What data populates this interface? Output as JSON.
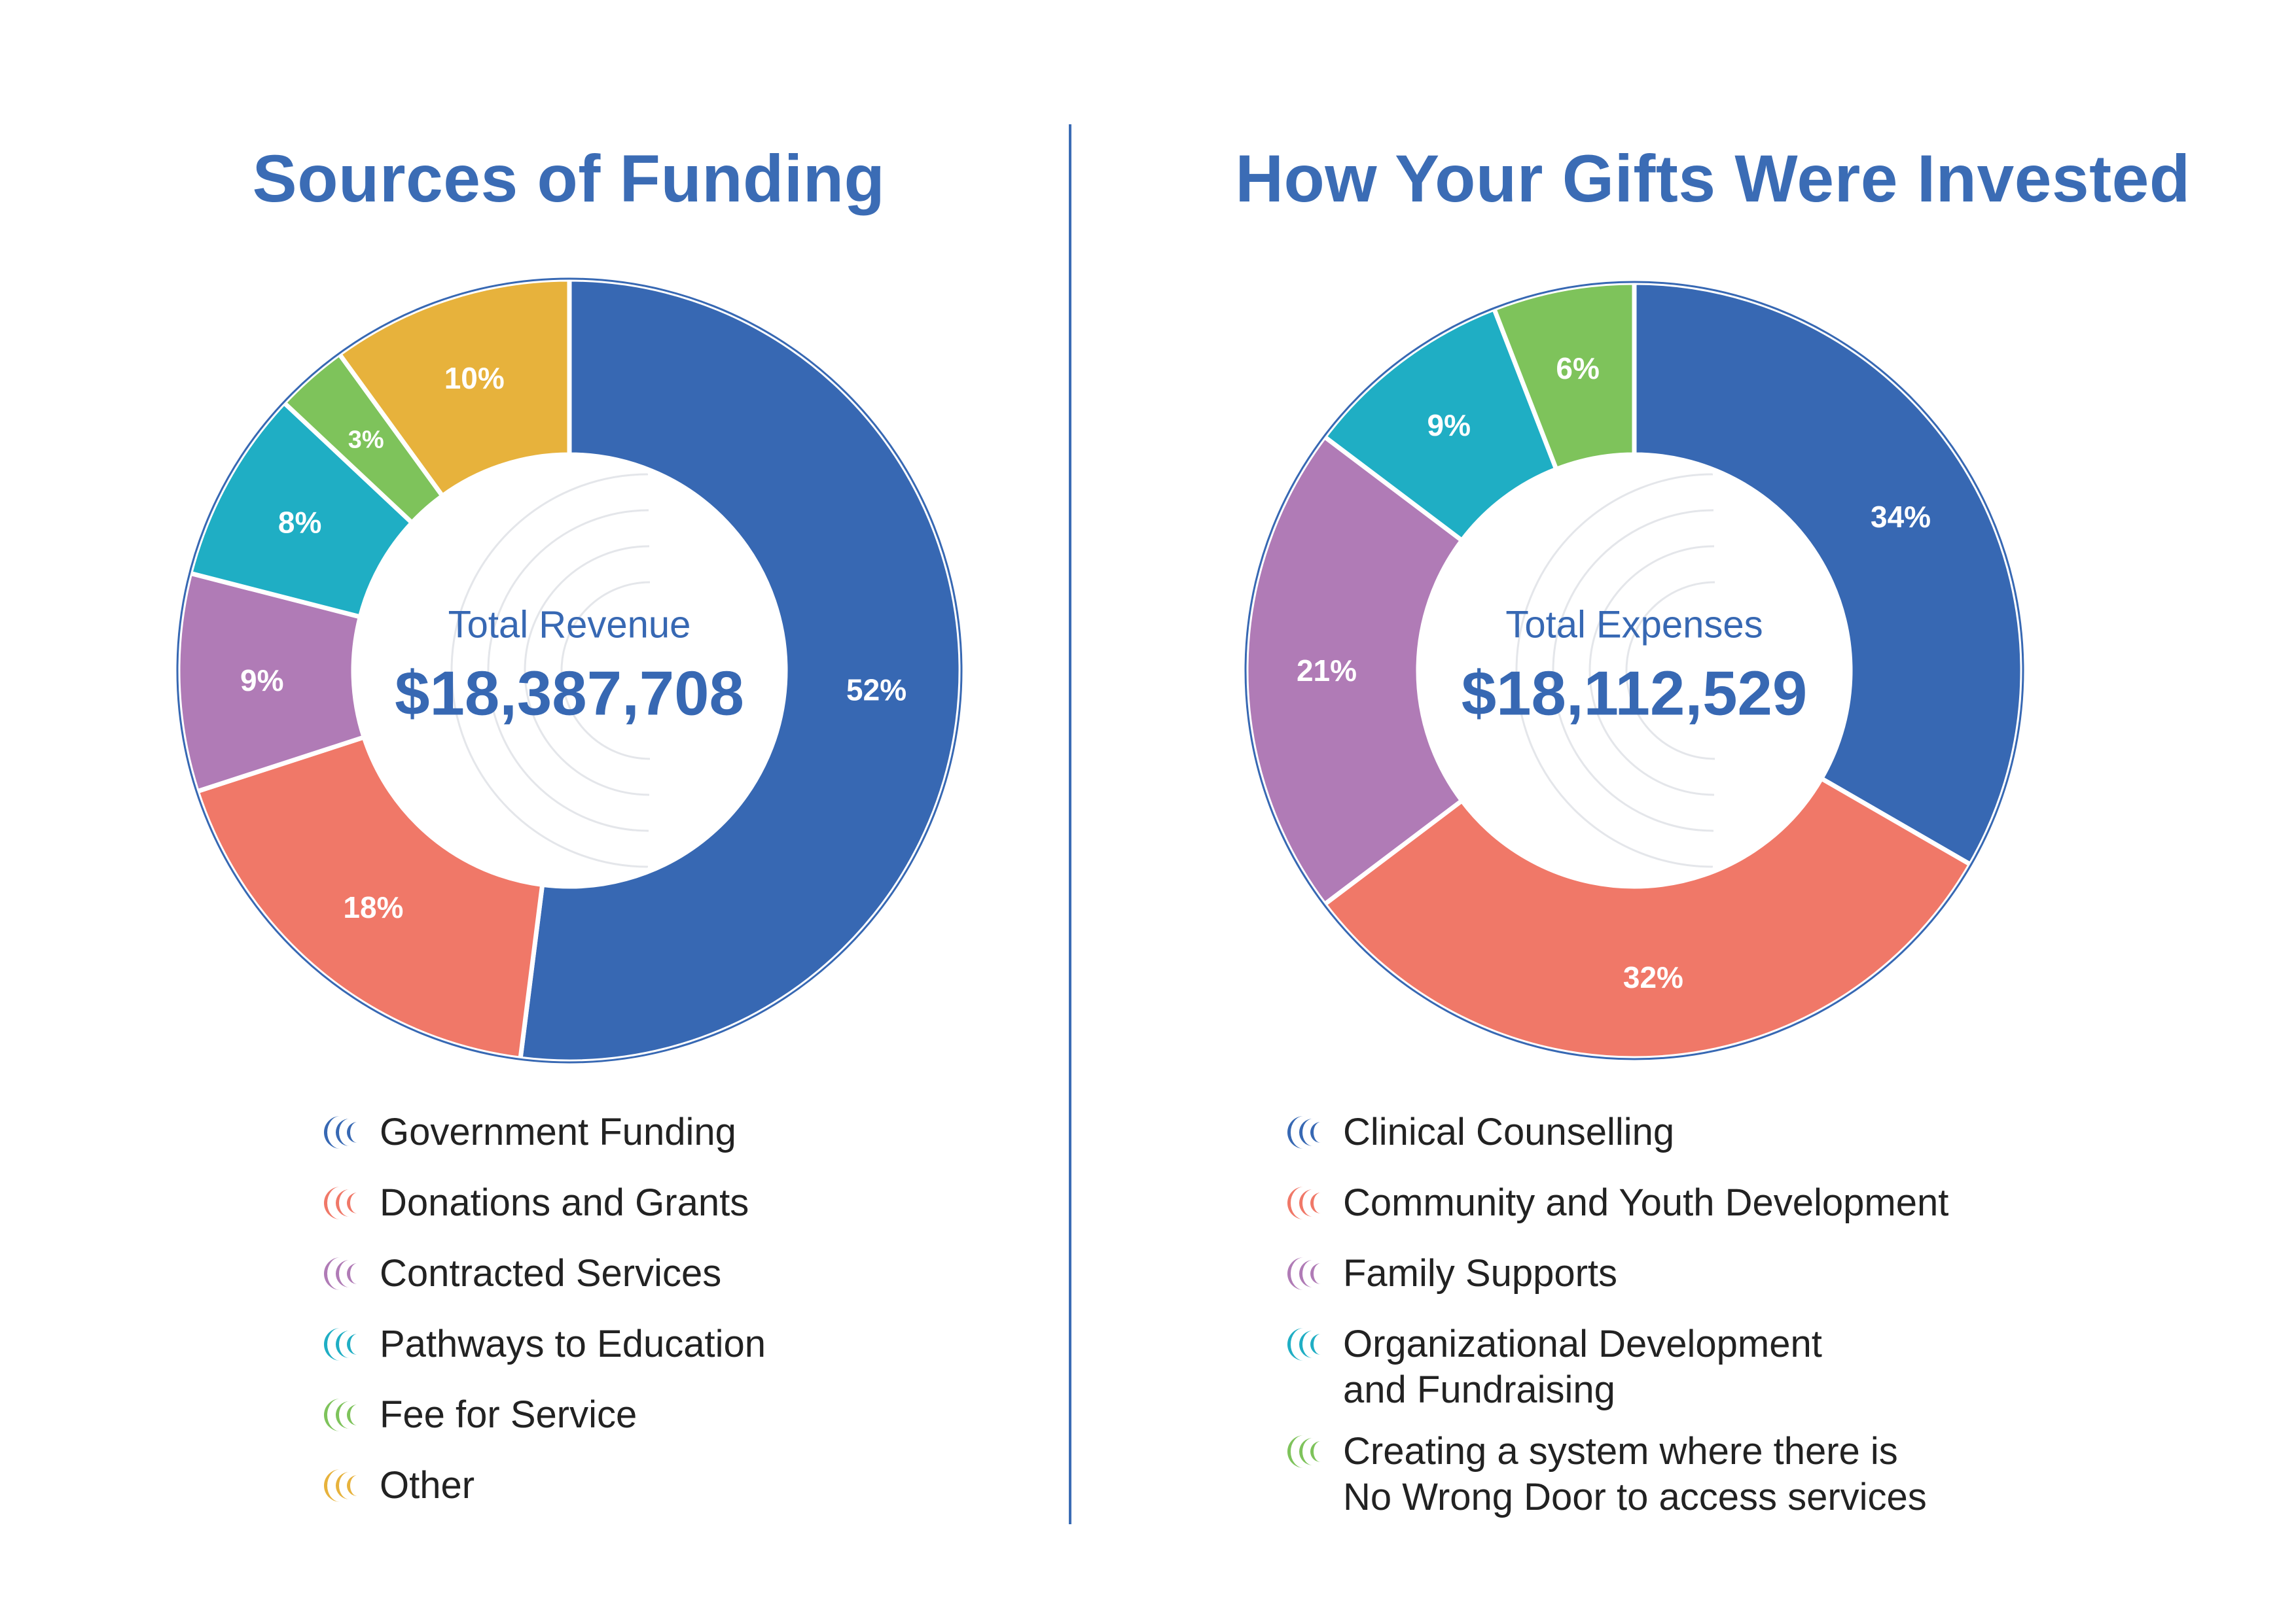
{
  "chart_data": [
    {
      "type": "pie",
      "title": "Sources of Funding",
      "center_label": "Total Revenue",
      "center_value": "$18,387,708",
      "categories": [
        "Government Funding",
        "Donations and Grants",
        "Contracted Services",
        "Pathways to Education",
        "Fee for Service",
        "Other"
      ],
      "values": [
        52,
        18,
        9,
        8,
        3,
        10
      ],
      "labels": [
        "52%",
        "18%",
        "9%",
        "8%",
        "3%",
        "10%"
      ],
      "colors": [
        "#3768b3",
        "#f07868",
        "#b07bb6",
        "#1faec4",
        "#7ec35b",
        "#e7b23c"
      ],
      "legend_placement": "bottom"
    },
    {
      "type": "pie",
      "title": "How Your Gifts Were Invested",
      "center_label": "Total Expenses",
      "center_value": "$18,112,529",
      "categories": [
        "Clinical Counselling",
        "Community and Youth Development",
        "Family Supports",
        "Organizational Development and Fundraising",
        "Creating a system where there is No Wrong Door to access services"
      ],
      "values": [
        34,
        32,
        21,
        9,
        6
      ],
      "labels": [
        "34%",
        "32%",
        "21%",
        "9%",
        "6%"
      ],
      "colors": [
        "#3768b3",
        "#f07868",
        "#b07bb6",
        "#1faec4",
        "#7ec35b"
      ],
      "legend_lines": [
        [
          "Clinical Counselling"
        ],
        [
          "Community and Youth Development"
        ],
        [
          "Family Supports"
        ],
        [
          "Organizational Development",
          "and Fundraising"
        ],
        [
          "Creating a system where there is",
          "No Wrong Door to access services"
        ]
      ],
      "legend_placement": "bottom"
    }
  ]
}
